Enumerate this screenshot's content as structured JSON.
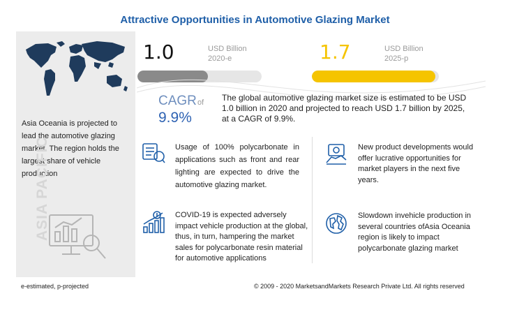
{
  "title": "Attractive Opportunities in Automotive Glazing  Market",
  "left_panel": {
    "region_text": "Asia Oceania is projected to lead the automotive glazing market. The region holds the largest share of vehicle production",
    "vertical_label": "ASIA PACIFIC",
    "map_icon": "world-map-icon",
    "chart_icon": "analytics-chart-icon"
  },
  "metrics": {
    "left": {
      "value": "1.0",
      "unit": "USD Billion",
      "year": "2020-e",
      "fill_fraction": 0.57,
      "color": "#8a8a8a"
    },
    "right": {
      "value": "1.7",
      "unit": "USD Billion",
      "year": "2025-p",
      "fill_fraction": 0.97,
      "color": "#f5c400"
    }
  },
  "cagr": {
    "label": "CAGR",
    "of": "of",
    "value": "9.9%"
  },
  "summary": "The global automotive glazing market size is estimated to be USD 1.0 billion in 2020 and projected to reach USD 1.7 billion by 2025, at a CAGR of 9.9%.",
  "points": [
    {
      "icon": "polycarbonate-lighting-icon",
      "text": "Usage of 100% polycarbonate in applications such as front and rear lighting are expected to drive the automotive glazing market."
    },
    {
      "icon": "growth-chart-icon",
      "text": "COVID-19 is expected adversely impact vehicle production at the global, thus, in turn, hampering the market sales for polycarbonate resin material for automotive applications"
    },
    {
      "icon": "product-development-icon",
      "text": "New product developments would offer lucrative opportunities for market players in the next five years."
    },
    {
      "icon": "globe-icon",
      "text": "Slowdown invehicle production in several countries ofAsia Oceania region is likely to impact polycarbonate glazing market"
    }
  ],
  "footer": {
    "note": "e-estimated, p-projected",
    "copyright": "© 2009 - 2020 MarketsandMarkets Research Private Ltd. All rights reserved"
  }
}
